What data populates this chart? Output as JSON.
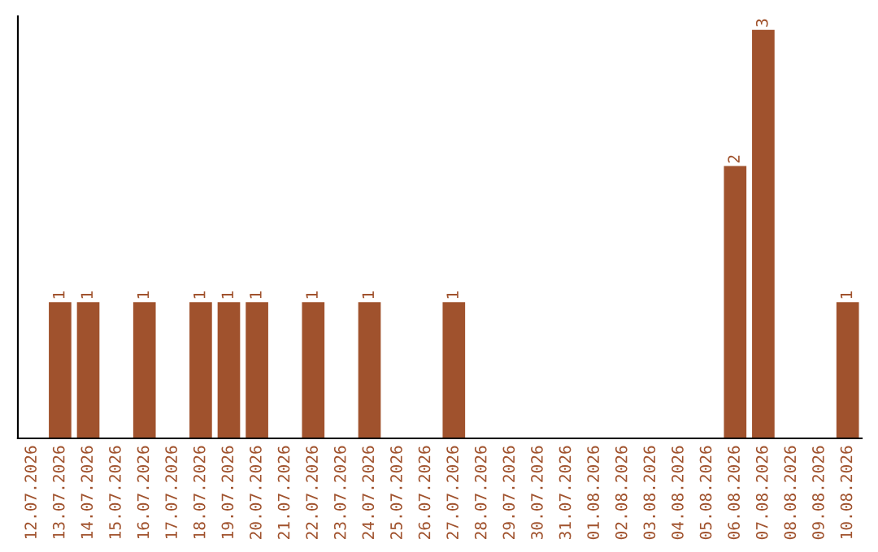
{
  "chart_data": {
    "type": "bar",
    "categories": [
      "12.07.2026",
      "13.07.2026",
      "14.07.2026",
      "15.07.2026",
      "16.07.2026",
      "17.07.2026",
      "18.07.2026",
      "19.07.2026",
      "20.07.2026",
      "21.07.2026",
      "22.07.2026",
      "23.07.2026",
      "24.07.2026",
      "25.07.2026",
      "26.07.2026",
      "27.07.2026",
      "28.07.2026",
      "29.07.2026",
      "30.07.2026",
      "31.07.2026",
      "01.08.2026",
      "02.08.2026",
      "03.08.2026",
      "04.08.2026",
      "05.08.2026",
      "06.08.2026",
      "07.08.2026",
      "08.08.2026",
      "09.08.2026",
      "10.08.2026"
    ],
    "values": [
      0,
      1,
      1,
      0,
      1,
      0,
      1,
      1,
      1,
      0,
      1,
      0,
      1,
      0,
      0,
      1,
      0,
      0,
      0,
      0,
      0,
      0,
      0,
      0,
      0,
      2,
      3,
      0,
      0,
      1
    ],
    "value_labels": [
      null,
      "1",
      "1",
      null,
      "1",
      null,
      "1",
      "1",
      "1",
      null,
      "1",
      null,
      "1",
      null,
      null,
      "1",
      null,
      null,
      null,
      null,
      null,
      null,
      null,
      null,
      null,
      "2",
      "3",
      null,
      null,
      "1"
    ],
    "color": "#a0522d",
    "ylim": [
      0,
      3.1
    ],
    "tick_labels": "x",
    "grid": false,
    "legend": false
  }
}
